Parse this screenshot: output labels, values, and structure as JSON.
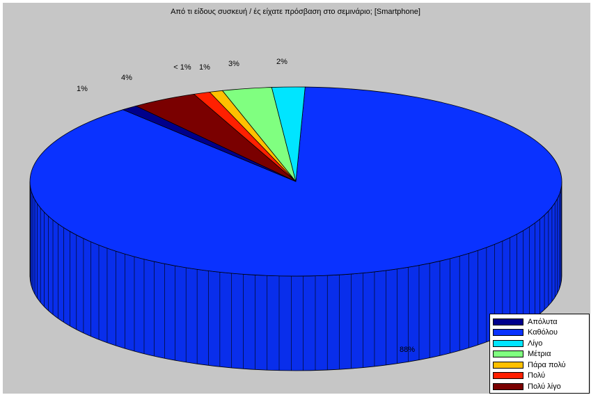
{
  "chart_data": {
    "type": "pie",
    "title": "Από τι είδους συσκευή / ές είχατε πρόσβαση στο σεμινάριο; [Smartphone]",
    "legend_position": "bottom-right",
    "three_d": true,
    "slices": [
      {
        "name": "Καθόλου",
        "value": 88,
        "label": "88%",
        "color": "#0a32ff"
      },
      {
        "name": "Απόλυτα",
        "value": 1,
        "label": "1%",
        "color": "#00008b"
      },
      {
        "name": "Πολύ λίγο",
        "value": 4,
        "label": "4%",
        "color": "#7a0000"
      },
      {
        "name": "Πολύ",
        "value": 1,
        "label": "1%",
        "color": "#ff2000"
      },
      {
        "name": "Πάρα πολύ",
        "value": 0.8,
        "label": "< 1%",
        "color": "#ffc000"
      },
      {
        "name": "Μέτρια",
        "value": 3,
        "label": "3%",
        "color": "#80ff80"
      },
      {
        "name": "Λίγο",
        "value": 2,
        "label": "2%",
        "color": "#00e5ff"
      }
    ],
    "legend": [
      {
        "name": "Απόλυτα",
        "color": "#00008b"
      },
      {
        "name": "Καθόλου",
        "color": "#0a32ff"
      },
      {
        "name": "Λίγο",
        "color": "#00e5ff"
      },
      {
        "name": "Μέτρια",
        "color": "#80ff80"
      },
      {
        "name": "Πάρα πολύ",
        "color": "#ffc000"
      },
      {
        "name": "Πολύ",
        "color": "#ff2000"
      },
      {
        "name": "Πολύ λίγο",
        "color": "#7a0000"
      }
    ]
  }
}
